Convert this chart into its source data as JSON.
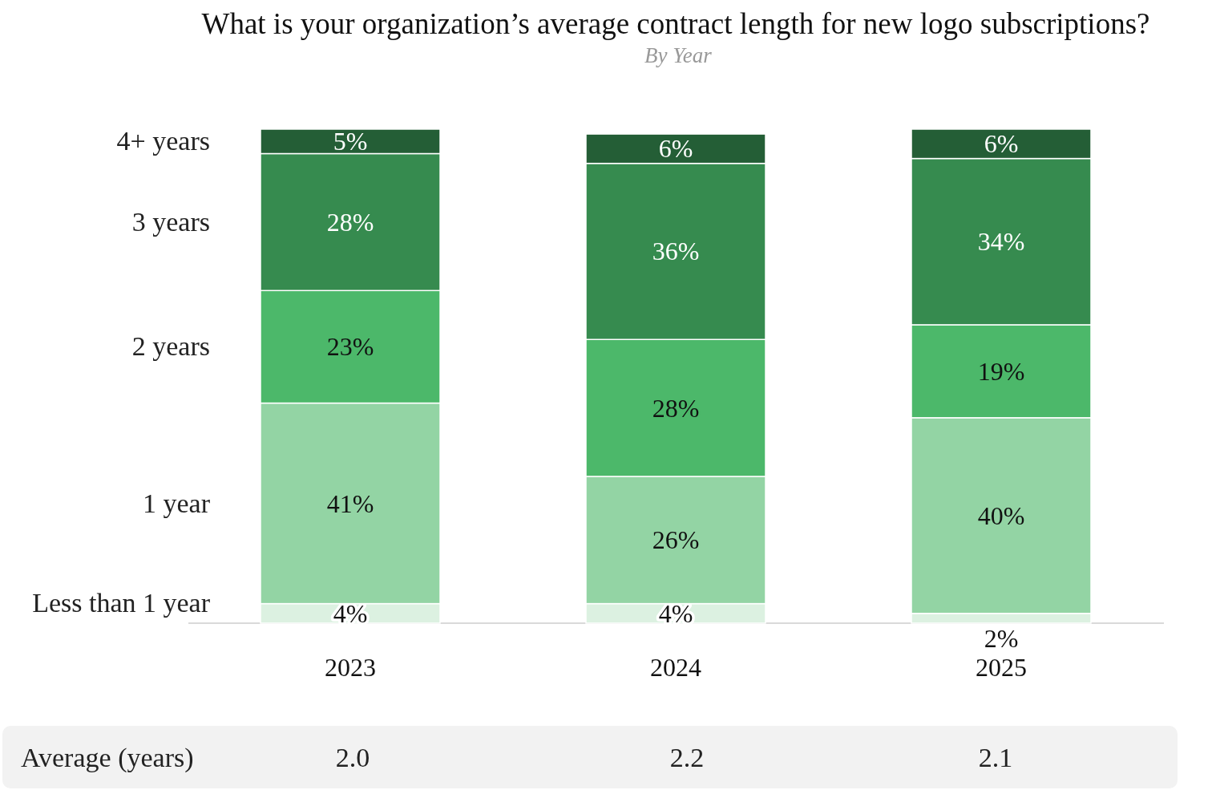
{
  "chart_data": {
    "type": "bar",
    "title": "What is your organization’s average contract length for new logo subscriptions?",
    "subtitle": "By Year",
    "categories": [
      "2023",
      "2024",
      "2025"
    ],
    "stacked": true,
    "legend": "left",
    "tick_labels": "x",
    "ylim": [
      0,
      101
    ],
    "series": [
      {
        "name": "Less than 1 year",
        "color": "#dcf1e1",
        "values": [
          4,
          4,
          2
        ],
        "value_labels": [
          "4%",
          "4%",
          "2%"
        ]
      },
      {
        "name": "1 year",
        "color": "#93d4a4",
        "values": [
          41,
          26,
          40
        ],
        "value_labels": [
          "41%",
          "26%",
          "40%"
        ]
      },
      {
        "name": "2 years",
        "color": "#4cb86a",
        "values": [
          23,
          28,
          19
        ],
        "value_labels": [
          "23%",
          "28%",
          "19%"
        ]
      },
      {
        "name": "3 years",
        "color": "#368b4f",
        "values": [
          28,
          36,
          34
        ],
        "value_labels": [
          "28%",
          "36%",
          "34%"
        ]
      },
      {
        "name": "4+ years",
        "color": "#245e36",
        "values": [
          5,
          6,
          6
        ],
        "value_labels": [
          "5%",
          "6%",
          "6%"
        ]
      }
    ],
    "annotations": [
      "Average (years)",
      "2.0",
      "2.2",
      "2.1"
    ]
  }
}
